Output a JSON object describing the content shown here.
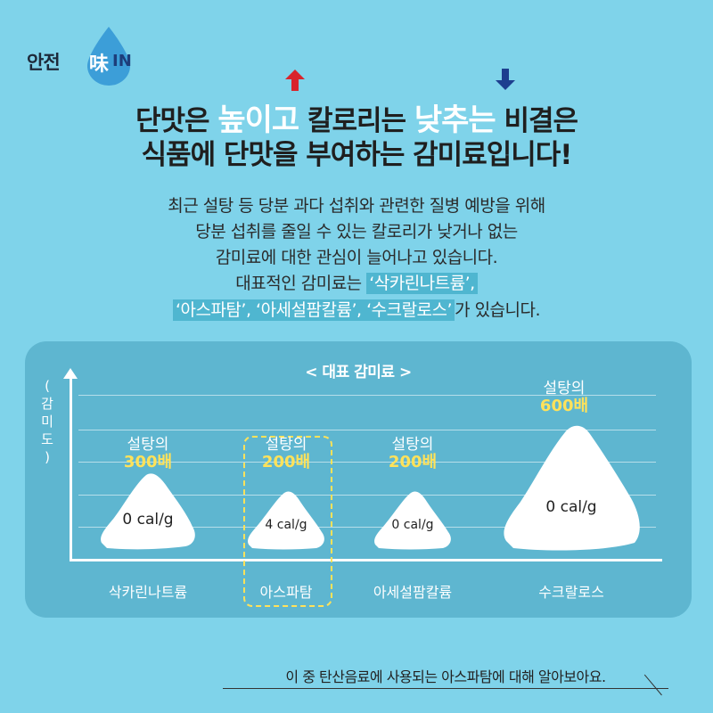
{
  "logo": {
    "text_main": "안전",
    "text_han": "味",
    "text_in": "IN"
  },
  "headline": {
    "line1_a": "단맛은 ",
    "line1_emph1": "높이고",
    "line1_b": " 칼로리는 ",
    "line1_emph2": "낮추는",
    "line1_c": " 비결은",
    "line2": "식품에 단맛을 부여하는 감미료입니다!",
    "arrow_up_color": "#d9242b",
    "arrow_down_color": "#1d3f8f"
  },
  "body": {
    "line1": "최근 설탕 등 당분 과다 섭취와 관련한 질병 예방을 위해",
    "line2": "당분 섭취를 줄일 수 있는 칼로리가 낮거나 없는",
    "line3": "감미료에 대한 관심이 늘어나고 있습니다.",
    "line4_a": "대표적인 감미료는 ",
    "line4_hl": "‘삭카린나트륨’,",
    "line5_hl": "‘아스파탐’, ‘아세설팜칼륨’, ‘수크랄로스’",
    "line5_b": "가 있습니다."
  },
  "panel": {
    "title": "< 대표 감미료 >",
    "ylabel": "( 감 미 도 )",
    "items": [
      {
        "name": "삭카린나트륨",
        "sweet1": "설탕의",
        "sweet2": "300배",
        "cal": "0 cal/g"
      },
      {
        "name": "아스파탐",
        "sweet1": "설탕의",
        "sweet2": "200배",
        "cal": "4 cal/g"
      },
      {
        "name": "아세설팜칼륨",
        "sweet1": "설탕의",
        "sweet2": "200배",
        "cal": "0 cal/g"
      },
      {
        "name": "수크랄로스",
        "sweet1": "설탕의",
        "sweet2": "600배",
        "cal": "0 cal/g"
      }
    ]
  },
  "footer": {
    "text": "이 중 탄산음료에 사용되는 아스파탐에 대해 알아보아요."
  },
  "colors": {
    "background": "#7fd3ea",
    "panel": "#5eb6d0",
    "accent_yellow": "#ffe25a",
    "highlight": "#4fb6d0"
  }
}
